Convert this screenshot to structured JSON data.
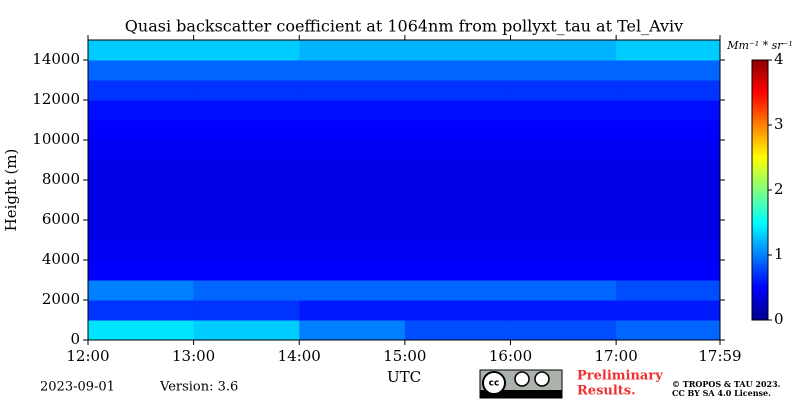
{
  "chart_data": {
    "type": "heatmap",
    "title": "Quasi backscatter coefficient at 1064nm from pollyxt_tau at Tel_Aviv",
    "xlabel": "UTC",
    "ylabel": "Height (m)",
    "colorbar_label": "Mm⁻¹ * sr⁻¹",
    "colormap": "jet",
    "x_bins": [
      12,
      13,
      14,
      15,
      16,
      17,
      17.9833
    ],
    "y_bins": [
      0,
      1000,
      2000,
      3000,
      4000,
      5000,
      6000,
      7000,
      8000,
      9000,
      10000,
      11000,
      12000,
      13000,
      14000,
      15000
    ],
    "z": [
      [
        1.4,
        1.3,
        1.0,
        0.8,
        0.8,
        0.9
      ],
      [
        0.7,
        0.7,
        0.6,
        0.6,
        0.6,
        0.6
      ],
      [
        1.0,
        0.9,
        0.9,
        0.9,
        0.9,
        0.8
      ],
      [
        0.5,
        0.5,
        0.5,
        0.5,
        0.5,
        0.5
      ],
      [
        0.45,
        0.45,
        0.45,
        0.45,
        0.45,
        0.45
      ],
      [
        0.4,
        0.4,
        0.4,
        0.4,
        0.4,
        0.4
      ],
      [
        0.4,
        0.4,
        0.4,
        0.4,
        0.4,
        0.4
      ],
      [
        0.4,
        0.4,
        0.4,
        0.4,
        0.4,
        0.4
      ],
      [
        0.4,
        0.4,
        0.4,
        0.4,
        0.4,
        0.4
      ],
      [
        0.45,
        0.45,
        0.45,
        0.45,
        0.45,
        0.45
      ],
      [
        0.5,
        0.5,
        0.5,
        0.5,
        0.5,
        0.5
      ],
      [
        0.55,
        0.55,
        0.55,
        0.55,
        0.55,
        0.55
      ],
      [
        0.7,
        0.7,
        0.7,
        0.7,
        0.7,
        0.7
      ],
      [
        0.9,
        0.9,
        0.9,
        0.9,
        0.9,
        0.9
      ],
      [
        1.3,
        1.3,
        1.2,
        1.2,
        1.2,
        1.3
      ]
    ],
    "xlim": [
      12,
      17.9833
    ],
    "xticks": [
      {
        "value": 12,
        "label": "12:00"
      },
      {
        "value": 13,
        "label": "13:00"
      },
      {
        "value": 14,
        "label": "14:00"
      },
      {
        "value": 15,
        "label": "15:00"
      },
      {
        "value": 16,
        "label": "16:00"
      },
      {
        "value": 17,
        "label": "17:00"
      },
      {
        "value": 17.9833,
        "label": "17:59"
      }
    ],
    "ylim": [
      0,
      15000
    ],
    "yticks": [
      0,
      2000,
      4000,
      6000,
      8000,
      10000,
      12000,
      14000
    ],
    "clim": [
      0,
      4
    ],
    "cticks": [
      0,
      1,
      2,
      3,
      4
    ],
    "date": "2023-09-01",
    "version": "Version: 3.6",
    "notice": [
      "Preliminary",
      "Results."
    ],
    "copyright": "© TROPOS & TAU 2023.",
    "license": "CC BY SA 4.0 License."
  }
}
